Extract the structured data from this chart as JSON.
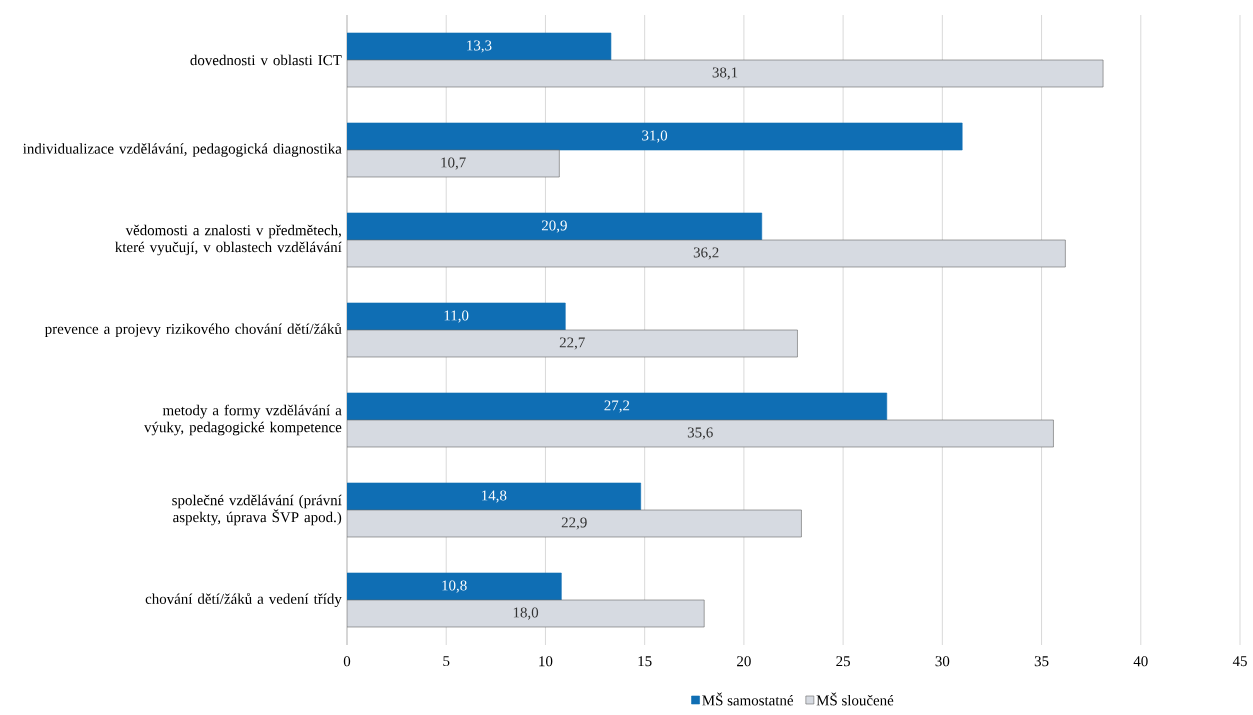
{
  "chart_data": {
    "type": "bar",
    "orientation": "horizontal",
    "categories": [
      "dovednosti v oblasti ICT",
      "individualizace vzdělávání, pedagogická diagnostika",
      "vědomosti a znalosti v předmětech, které vyučují, v oblastech vzdělávání",
      "prevence a projevy rizikového chování dětí/žáků",
      "metody a formy vzdělávání a výuky, pedagogické kompetence",
      "společné vzdělávání (právní aspekty, úprava ŠVP apod.)",
      "chování dětí/žáků a vedení třídy"
    ],
    "series": [
      {
        "name": "MŠ samostatné",
        "color": "#0f6eb4",
        "values": [
          13.3,
          31.0,
          20.9,
          11.0,
          27.2,
          14.8,
          10.8
        ],
        "value_labels": [
          "13,3",
          "31,0",
          "20,9",
          "11,0",
          "27,2",
          "14,8",
          "10,8"
        ]
      },
      {
        "name": "MŠ sloučené",
        "color": "#d6dae1",
        "values": [
          38.1,
          10.7,
          36.2,
          22.7,
          35.6,
          22.9,
          18.0
        ],
        "value_labels": [
          "38,1",
          "10,7",
          "36,2",
          "22,7",
          "35,6",
          "22,9",
          "18,0"
        ]
      }
    ],
    "xlim": [
      0,
      45
    ],
    "xticks": [
      0,
      5,
      10,
      15,
      20,
      25,
      30,
      35,
      40,
      45
    ],
    "grid": "x",
    "legend": "bottom"
  }
}
